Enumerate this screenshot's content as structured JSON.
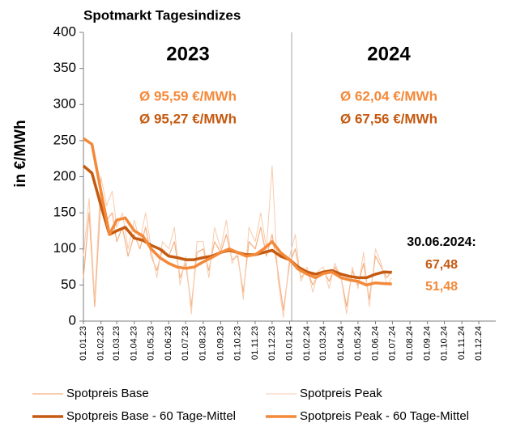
{
  "chart_data": {
    "type": "line",
    "title": "Spotmarkt Tagesindizes",
    "y_label": "in €/MWh",
    "ylim": [
      0,
      400
    ],
    "yticks": [
      0,
      50,
      100,
      150,
      200,
      250,
      300,
      350,
      400
    ],
    "xlim": [
      "01.01.23",
      "31.12.24"
    ],
    "xticks": [
      "01.01.23",
      "01.02.23",
      "01.03.23",
      "01.04.23",
      "01.05.23",
      "01.06.23",
      "01.07.23",
      "01.08.23",
      "01.09.23",
      "01.10.23",
      "01.11.23",
      "01.12.23",
      "01.01.24",
      "01.02.24",
      "01.03.24",
      "01.04.24",
      "01.05.24",
      "01.06.24",
      "01.07.24",
      "01.08.24",
      "01.09.24",
      "01.10.24",
      "01.11.24",
      "01.12.24"
    ],
    "grid": false,
    "legend": "bottom",
    "annotations": [
      "2023",
      "2024",
      "Ø 95,59 €/MWh",
      "Ø 95,27 €/MWh",
      "Ø 62,04 €/MWh",
      "Ø 67,56 €/MWh",
      "30.06.2024:",
      "67,48",
      "51,48"
    ],
    "series": [
      {
        "name": "Spotpreis Base",
        "color": "#f4b183",
        "width": 1.2,
        "x": [
          "01.01.23",
          "11.01.23",
          "21.01.23",
          "01.02.23",
          "11.02.23",
          "21.02.23",
          "01.03.23",
          "11.03.23",
          "21.03.23",
          "01.04.23",
          "11.04.23",
          "21.04.23",
          "01.05.23",
          "11.05.23",
          "21.05.23",
          "01.06.23",
          "11.06.23",
          "21.06.23",
          "01.07.23",
          "11.07.23",
          "21.07.23",
          "01.08.23",
          "11.08.23",
          "21.08.23",
          "01.09.23",
          "11.09.23",
          "21.09.23",
          "01.10.23",
          "11.10.23",
          "21.10.23",
          "01.11.23",
          "11.11.23",
          "21.11.23",
          "01.12.23",
          "11.12.23",
          "21.12.23",
          "01.01.24",
          "11.01.24",
          "21.01.24",
          "01.02.24",
          "11.02.24",
          "21.02.24",
          "01.03.24",
          "11.03.24",
          "21.03.24",
          "01.04.24",
          "11.04.24",
          "21.04.24",
          "01.05.24",
          "11.05.24",
          "21.05.24",
          "01.06.24",
          "11.06.24",
          "21.06.24",
          "30.06.24"
        ],
        "values": [
          60,
          150,
          20,
          170,
          140,
          150,
          110,
          130,
          90,
          120,
          100,
          130,
          90,
          70,
          100,
          90,
          110,
          60,
          80,
          20,
          95,
          100,
          70,
          110,
          95,
          120,
          85,
          90,
          40,
          110,
          100,
          130,
          90,
          120,
          70,
          15,
          80,
          100,
          60,
          70,
          50,
          65,
          70,
          55,
          75,
          60,
          20,
          70,
          50,
          80,
          30,
          90,
          75,
          60,
          70
        ]
      },
      {
        "name": "Spotpreis Peak",
        "color": "#f8cbad",
        "width": 1,
        "x": [
          "01.01.23",
          "11.01.23",
          "21.01.23",
          "01.02.23",
          "11.02.23",
          "21.02.23",
          "01.03.23",
          "11.03.23",
          "21.03.23",
          "01.04.23",
          "11.04.23",
          "21.04.23",
          "01.05.23",
          "11.05.23",
          "21.05.23",
          "01.06.23",
          "11.06.23",
          "21.06.23",
          "01.07.23",
          "11.07.23",
          "21.07.23",
          "01.08.23",
          "11.08.23",
          "21.08.23",
          "01.09.23",
          "11.09.23",
          "21.09.23",
          "01.10.23",
          "11.10.23",
          "21.10.23",
          "01.11.23",
          "11.11.23",
          "21.11.23",
          "01.12.23",
          "11.12.23",
          "21.12.23",
          "01.01.24",
          "11.01.24",
          "21.01.24",
          "01.02.24",
          "11.02.24",
          "21.02.24",
          "01.03.24",
          "11.03.24",
          "21.03.24",
          "01.04.24",
          "11.04.24",
          "21.04.24",
          "01.05.24",
          "11.05.24",
          "21.05.24",
          "01.06.24",
          "11.06.24",
          "21.06.24",
          "30.06.24"
        ],
        "values": [
          90,
          170,
          30,
          200,
          160,
          180,
          130,
          150,
          100,
          140,
          110,
          150,
          100,
          60,
          110,
          100,
          130,
          50,
          90,
          10,
          110,
          110,
          60,
          130,
          100,
          140,
          80,
          95,
          30,
          130,
          110,
          150,
          100,
          215,
          60,
          5,
          90,
          120,
          55,
          75,
          40,
          70,
          75,
          45,
          80,
          60,
          10,
          75,
          45,
          95,
          20,
          100,
          80,
          50,
          60
        ]
      },
      {
        "name": "Spotpreis Base - 60 Tage-Mittel",
        "color": "#c55a11",
        "width": 3.5,
        "x": [
          "01.01.23",
          "16.01.23",
          "01.02.23",
          "16.02.23",
          "01.03.23",
          "16.03.23",
          "01.04.23",
          "16.04.23",
          "01.05.23",
          "16.05.23",
          "01.06.23",
          "16.06.23",
          "01.07.23",
          "16.07.23",
          "01.08.23",
          "16.08.23",
          "01.09.23",
          "16.09.23",
          "01.10.23",
          "16.10.23",
          "01.11.23",
          "16.11.23",
          "01.12.23",
          "16.12.23",
          "01.01.24",
          "16.01.24",
          "01.02.24",
          "16.02.24",
          "01.03.24",
          "16.03.24",
          "01.04.24",
          "16.04.24",
          "01.05.24",
          "16.05.24",
          "01.06.24",
          "16.06.24",
          "30.06.24"
        ],
        "values": [
          215,
          205,
          160,
          120,
          125,
          130,
          115,
          112,
          105,
          100,
          90,
          88,
          85,
          85,
          88,
          90,
          95,
          98,
          95,
          92,
          92,
          95,
          98,
          90,
          85,
          75,
          68,
          65,
          68,
          70,
          65,
          62,
          60,
          60,
          65,
          68,
          67.48
        ]
      },
      {
        "name": "Spotpreis Peak - 60 Tage-Mittel",
        "color": "#f4893a",
        "width": 3.5,
        "x": [
          "01.01.23",
          "16.01.23",
          "01.02.23",
          "16.02.23",
          "01.03.23",
          "16.03.23",
          "01.04.23",
          "16.04.23",
          "01.05.23",
          "16.05.23",
          "01.06.23",
          "16.06.23",
          "01.07.23",
          "16.07.23",
          "01.08.23",
          "16.08.23",
          "01.09.23",
          "16.09.23",
          "01.10.23",
          "16.10.23",
          "01.11.23",
          "16.11.23",
          "01.12.23",
          "16.12.23",
          "01.01.24",
          "16.01.24",
          "01.02.24",
          "16.02.24",
          "01.03.24",
          "16.03.24",
          "01.04.24",
          "16.04.24",
          "01.05.24",
          "16.05.24",
          "01.06.24",
          "16.06.24",
          "30.06.24"
        ],
        "values": [
          253,
          245,
          180,
          120,
          140,
          143,
          125,
          118,
          100,
          88,
          80,
          75,
          73,
          75,
          82,
          88,
          95,
          100,
          95,
          90,
          92,
          100,
          110,
          95,
          85,
          72,
          65,
          60,
          66,
          68,
          60,
          57,
          55,
          50,
          53,
          52,
          51.48
        ]
      }
    ]
  }
}
